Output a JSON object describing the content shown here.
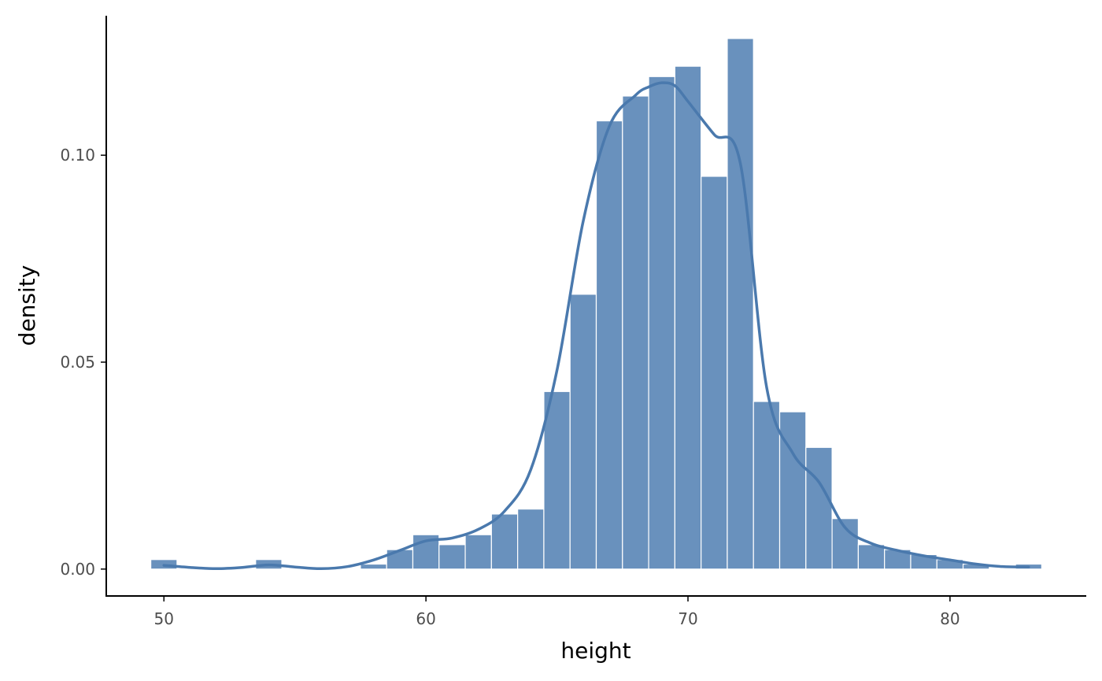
{
  "chart_data": {
    "type": "bar",
    "title": "",
    "xlabel": "height",
    "ylabel": "density",
    "xlim": [
      47.8,
      85.2
    ],
    "ylim": [
      -0.0065,
      0.1337
    ],
    "x_ticks": [
      50,
      60,
      70,
      80
    ],
    "y_ticks": [
      0.0,
      0.05,
      0.1
    ],
    "x_tick_labels": [
      "50",
      "60",
      "70",
      "80"
    ],
    "y_tick_labels": [
      "0.00",
      "0.05",
      "0.10"
    ],
    "grid": false,
    "legend": "none",
    "bar_color": "#4a7bb0",
    "bar_edge_color": "#ffffff",
    "line_color": "#4a79ad",
    "histogram": {
      "bin_width": 1,
      "bin_centers": [
        50,
        54,
        58,
        59,
        60,
        61,
        62,
        63,
        64,
        65,
        66,
        67,
        68,
        69,
        70,
        71,
        72,
        73,
        74,
        75,
        76,
        77,
        78,
        79,
        80,
        81,
        83
      ],
      "density": [
        0.0023,
        0.0023,
        0.0012,
        0.0047,
        0.0083,
        0.0059,
        0.0083,
        0.0133,
        0.0145,
        0.0429,
        0.0664,
        0.1083,
        0.1143,
        0.119,
        0.1215,
        0.0949,
        0.1282,
        0.0405,
        0.038,
        0.0294,
        0.0122,
        0.0059,
        0.0047,
        0.0035,
        0.0023,
        0.0012,
        0.0012
      ]
    },
    "density_curve": {
      "x": [
        50,
        51,
        52,
        53,
        54,
        55,
        56,
        57,
        58,
        59,
        60,
        61,
        62,
        63,
        64,
        65,
        66,
        67,
        68,
        68.5,
        69,
        69.5,
        70,
        71,
        72,
        73,
        74,
        75,
        76,
        77,
        78,
        79,
        80,
        81,
        82,
        83
      ],
      "y": [
        0.0009,
        0.0004,
        0.0001,
        0.0004,
        0.001,
        0.0005,
        0.0001,
        0.0006,
        0.0022,
        0.0045,
        0.0068,
        0.0075,
        0.0096,
        0.014,
        0.024,
        0.048,
        0.084,
        0.107,
        0.1145,
        0.1165,
        0.1175,
        0.1168,
        0.113,
        0.105,
        0.098,
        0.044,
        0.028,
        0.021,
        0.01,
        0.0062,
        0.0045,
        0.0032,
        0.0022,
        0.0012,
        0.0006,
        0.0005
      ]
    }
  }
}
